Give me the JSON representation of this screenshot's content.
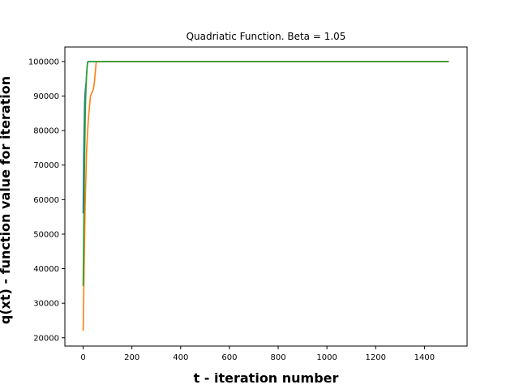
{
  "chart_data": {
    "type": "line",
    "title": "Quadriatic Function. Beta = 1.05",
    "xlabel": "t - iteration number",
    "ylabel": "q(xt) - function value for iteration",
    "xlim": [
      -75,
      1575
    ],
    "ylim": [
      17600,
      104200
    ],
    "xticks": [
      0,
      200,
      400,
      600,
      800,
      1000,
      1200,
      1400
    ],
    "yticks": [
      20000,
      30000,
      40000,
      50000,
      60000,
      70000,
      80000,
      90000,
      100000
    ],
    "grid": false,
    "legend": false,
    "series": [
      {
        "color": "#1f77b4",
        "points": [
          [
            0,
            56000
          ],
          [
            2,
            72000
          ],
          [
            4,
            80000
          ],
          [
            6,
            88000
          ],
          [
            8,
            91000
          ],
          [
            12,
            94000
          ],
          [
            15,
            97000
          ],
          [
            18,
            99500
          ],
          [
            20,
            100000
          ],
          [
            1500,
            100000
          ]
        ]
      },
      {
        "color": "#ff7f0e",
        "points": [
          [
            0,
            22000
          ],
          [
            4,
            40000
          ],
          [
            8,
            58000
          ],
          [
            14,
            74000
          ],
          [
            20,
            82000
          ],
          [
            26,
            87000
          ],
          [
            30,
            90000
          ],
          [
            36,
            91000
          ],
          [
            42,
            92000
          ],
          [
            46,
            94000
          ],
          [
            50,
            97000
          ],
          [
            53,
            99500
          ],
          [
            55,
            100000
          ],
          [
            1500,
            100000
          ]
        ]
      },
      {
        "color": "#2ca02c",
        "points": [
          [
            0,
            35000
          ],
          [
            3,
            55000
          ],
          [
            6,
            72000
          ],
          [
            9,
            86000
          ],
          [
            12,
            93000
          ],
          [
            15,
            97500
          ],
          [
            18,
            99800
          ],
          [
            21,
            100000
          ],
          [
            1500,
            100000
          ]
        ]
      }
    ]
  }
}
